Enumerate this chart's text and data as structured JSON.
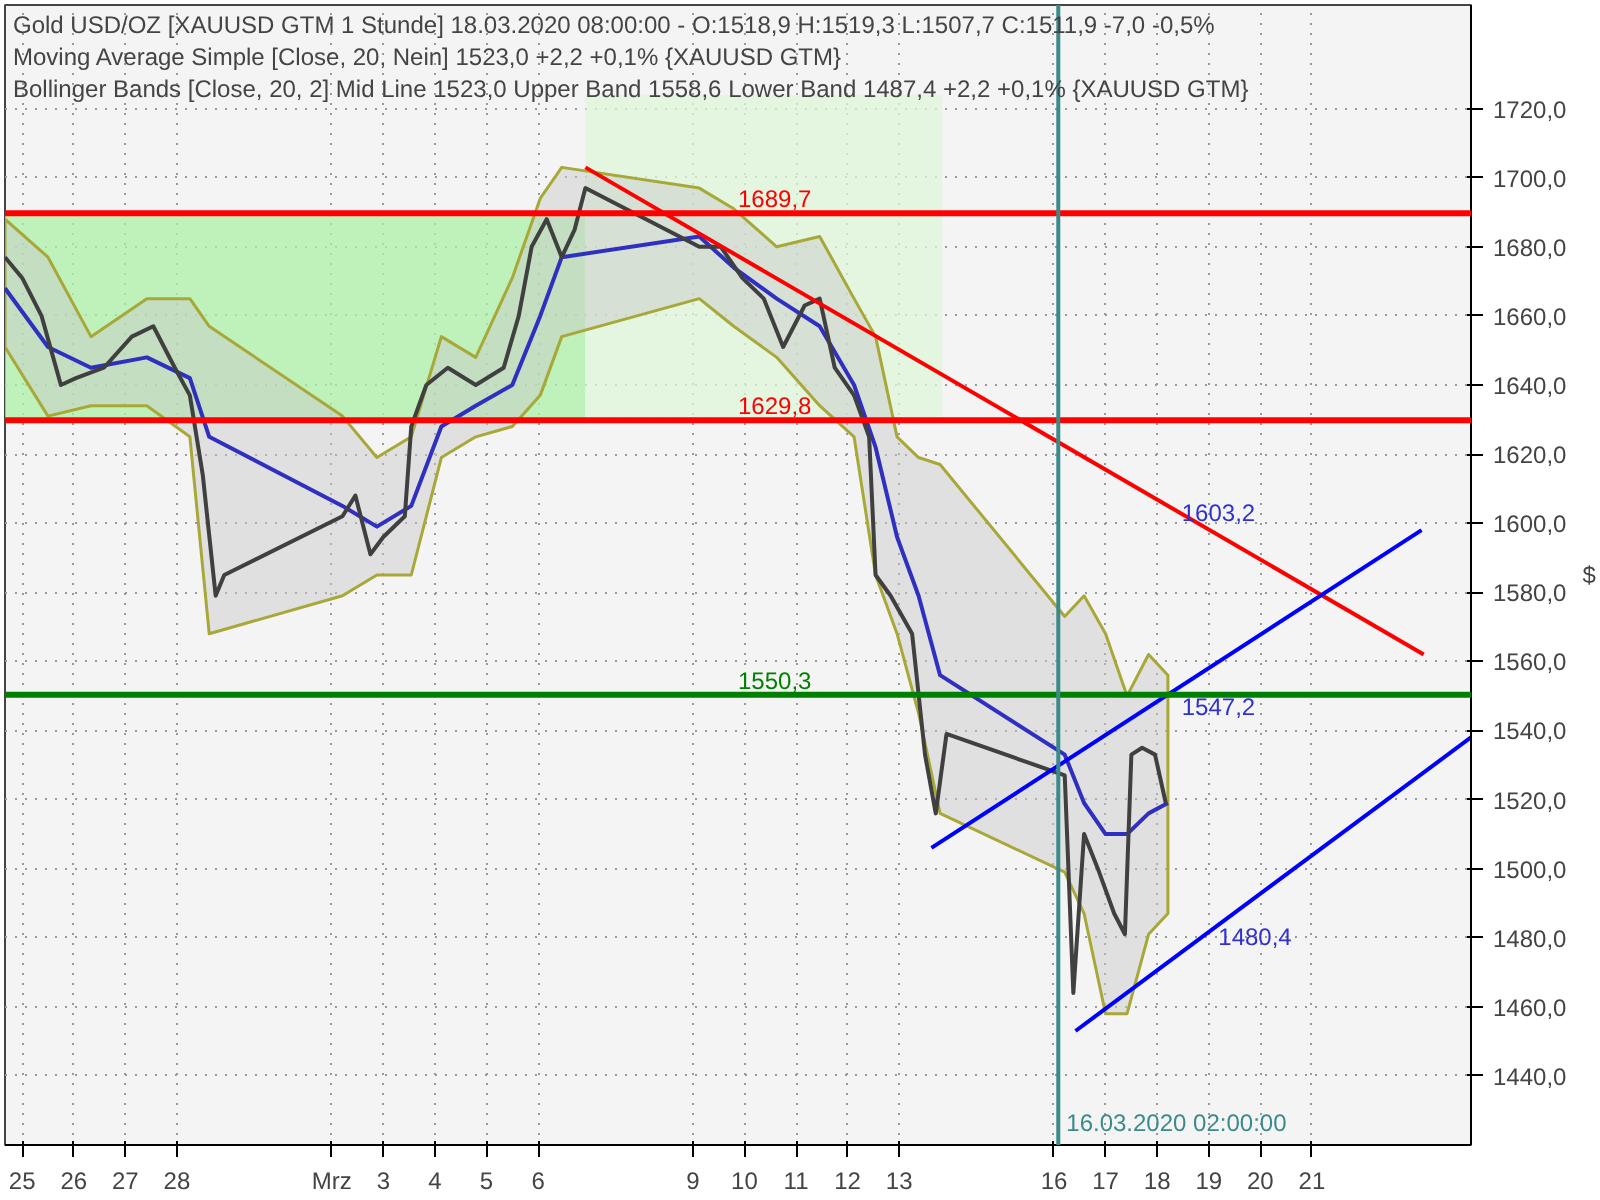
{
  "chart_data": {
    "type": "line",
    "title": "Gold USD/OZ [XAUUSD GTM  1 Stunde] 18.03.2020 08:00:00 - O:1518,9 H:1519,3 L:1507,7 C:1511,9 -7,0 -0,5%",
    "ylabel": "$",
    "xlim": [
      "2020-02-24T16:00",
      "2020-03-24T02:00"
    ],
    "xticks": [
      {
        "value": "2020-02-25",
        "label": "25"
      },
      {
        "value": "2020-02-26",
        "label": "26"
      },
      {
        "value": "2020-02-27",
        "label": "27"
      },
      {
        "value": "2020-02-28",
        "label": "28"
      },
      {
        "value": "2020-03-02",
        "label": "Mrz"
      },
      {
        "value": "2020-03-03",
        "label": "3"
      },
      {
        "value": "2020-03-04",
        "label": "4"
      },
      {
        "value": "2020-03-05",
        "label": "5"
      },
      {
        "value": "2020-03-06",
        "label": "6"
      },
      {
        "value": "2020-03-09",
        "label": "9"
      },
      {
        "value": "2020-03-10",
        "label": "10"
      },
      {
        "value": "2020-03-11",
        "label": "11"
      },
      {
        "value": "2020-03-12",
        "label": "12"
      },
      {
        "value": "2020-03-13",
        "label": "13"
      },
      {
        "value": "2020-03-16",
        "label": "16"
      },
      {
        "value": "2020-03-17",
        "label": "17"
      },
      {
        "value": "2020-03-18",
        "label": "18"
      },
      {
        "value": "2020-03-19",
        "label": "19"
      },
      {
        "value": "2020-03-20",
        "label": "20"
      },
      {
        "value": "2020-03-21",
        "label": "21"
      }
    ],
    "ylim": [
      1420,
      1750
    ],
    "yticks": [
      {
        "value": 1440,
        "label": "1440,0"
      },
      {
        "value": 1460,
        "label": "1460,0"
      },
      {
        "value": 1480,
        "label": "1480,0"
      },
      {
        "value": 1500,
        "label": "1500,0"
      },
      {
        "value": 1520,
        "label": "1520,0"
      },
      {
        "value": 1540,
        "label": "1540,0"
      },
      {
        "value": 1560,
        "label": "1560,0"
      },
      {
        "value": 1580,
        "label": "1580,0"
      },
      {
        "value": 1600,
        "label": "1600,0"
      },
      {
        "value": 1620,
        "label": "1620,0"
      },
      {
        "value": 1640,
        "label": "1640,0"
      },
      {
        "value": 1660,
        "label": "1660,0"
      },
      {
        "value": 1680,
        "label": "1680,0"
      },
      {
        "value": 1700,
        "label": "1700,0"
      },
      {
        "value": 1720,
        "label": "1720,0"
      }
    ],
    "grid": true,
    "series": [
      {
        "color": "#aef0a8",
        "x": [
          "2020-02-24T16:00",
          "2020-03-06T22:00"
        ],
        "values": [
          null,
          null
        ],
        "upper": [
          1689.7,
          1689.7
        ],
        "lower": [
          1629.8,
          1629.8
        ]
      },
      {
        "color": "#dff5da",
        "x": [
          "2020-03-06T22:00",
          "2020-03-13T20:00"
        ],
        "values": [
          null,
          null
        ],
        "upper": [
          1724,
          1724
        ],
        "lower": [
          1629.8,
          1629.8
        ]
      },
      {
        "color": "#3030c0",
        "x": [
          "2020-02-24T16:00",
          "2020-02-25T12:00",
          "2020-02-26T08:00",
          "2020-02-27T10:00",
          "2020-02-28T06:00",
          "2020-02-28T15:00",
          "2020-03-02T05:00",
          "2020-03-02T21:00",
          "2020-03-03T13:00",
          "2020-03-04T03:00",
          "2020-03-04T19:00",
          "2020-03-05T12:00",
          "2020-03-06T01:00",
          "2020-03-06T11:00",
          "2020-03-09T03:00",
          "2020-03-09T19:00",
          "2020-03-10T15:00",
          "2020-03-11T11:00",
          "2020-03-12T03:00",
          "2020-03-12T13:00",
          "2020-03-12T23:00",
          "2020-03-13T09:00",
          "2020-03-13T19:00",
          "2020-03-16T05:00",
          "2020-03-16T14:00",
          "2020-03-17T00:00",
          "2020-03-17T10:00",
          "2020-03-17T20:00",
          "2020-03-18T05:00"
        ],
        "values": [
          1668,
          1651,
          1645,
          1648,
          1642,
          1625,
          1605,
          1599,
          1605,
          1628,
          1634,
          1640,
          1660,
          1677,
          1683,
          1674,
          1665,
          1657,
          1640,
          1622,
          1596,
          1579,
          1556,
          1533,
          1519,
          1510,
          1510,
          1516,
          1519
        ],
        "upper": [
          1688,
          1677,
          1654,
          1665,
          1665,
          1657,
          1631,
          1619,
          1625,
          1654,
          1648,
          1671,
          1694,
          1703,
          1697,
          1691,
          1680,
          1683,
          1665,
          1654,
          1625,
          1619,
          1617,
          1573,
          1579,
          1568,
          1550,
          1562,
          1556
        ],
        "lower": [
          1651,
          1631,
          1634,
          1634,
          1625,
          1568,
          1579,
          1585,
          1585,
          1619,
          1625,
          1628,
          1637,
          1654,
          1665,
          1657,
          1648,
          1634,
          1625,
          1585,
          1568,
          1545,
          1516,
          1499,
          1487,
          1458,
          1458,
          1481,
          1487
        ]
      },
      {
        "color": "#404040",
        "x": [
          "2020-02-24T16:00",
          "2020-02-25T00:00",
          "2020-02-25T09:00",
          "2020-02-25T18:00",
          "2020-02-26T01:00",
          "2020-02-26T14:00",
          "2020-02-27T03:00",
          "2020-02-27T13:00",
          "2020-02-27T23:00",
          "2020-02-28T06:00",
          "2020-02-28T12:00",
          "2020-02-28T18:00",
          "2020-02-28T22:00",
          "2020-03-02T05:00",
          "2020-03-02T11:00",
          "2020-03-02T18:00",
          "2020-03-03T00:00",
          "2020-03-03T10:00",
          "2020-03-03T13:00",
          "2020-03-03T20:00",
          "2020-03-04T06:00",
          "2020-03-04T19:00",
          "2020-03-05T08:00",
          "2020-03-05T15:00",
          "2020-03-05T21:00",
          "2020-03-06T04:00",
          "2020-03-06T11:00",
          "2020-03-06T17:00",
          "2020-03-06T22:00",
          "2020-03-09T03:00",
          "2020-03-09T13:00",
          "2020-03-09T23:00",
          "2020-03-10T09:00",
          "2020-03-10T18:00",
          "2020-03-11T04:00",
          "2020-03-11T11:00",
          "2020-03-11T18:00",
          "2020-03-12T03:00",
          "2020-03-12T10:00",
          "2020-03-12T13:00",
          "2020-03-12T20:00",
          "2020-03-13T06:00",
          "2020-03-13T12:00",
          "2020-03-13T17:00",
          "2020-03-13T22:00",
          "2020-03-16T05:00",
          "2020-03-16T09:00",
          "2020-03-16T14:00",
          "2020-03-16T21:00",
          "2020-03-17T04:00",
          "2020-03-17T09:00",
          "2020-03-17T12:00",
          "2020-03-17T17:00",
          "2020-03-17T23:00",
          "2020-03-18T04:00"
        ],
        "values": [
          1677,
          1671,
          1660,
          1640,
          1642,
          1645,
          1654,
          1657,
          1645,
          1637,
          1614,
          1579,
          1585,
          1602,
          1608,
          1591,
          1596,
          1602,
          1628,
          1640,
          1645,
          1640,
          1645,
          1660,
          1680,
          1688,
          1677,
          1685,
          1697,
          1680,
          1680,
          1671,
          1665,
          1651,
          1663,
          1665,
          1645,
          1637,
          1625,
          1585,
          1579,
          1568,
          1533,
          1516,
          1539,
          1527,
          1464,
          1510,
          1499,
          1487,
          1481,
          1533,
          1535,
          1533,
          1519
        ]
      },
      {
        "color": "#ff0000",
        "x": [
          "2020-03-06T22:00",
          "2020-03-23T04:00"
        ],
        "values": [
          1703,
          1562
        ]
      },
      {
        "color": "#0000ff",
        "x": [
          "2020-03-13T15:00",
          "2020-03-23T03:00"
        ],
        "values": [
          1506,
          1598
        ]
      },
      {
        "color": "#0000ff",
        "x": [
          "2020-03-16T10:00",
          "2020-03-24T02:00"
        ],
        "values": [
          1453,
          1538
        ]
      }
    ],
    "ref_lines": [
      {
        "axis": "y",
        "value": 1689.7,
        "label": "1689,7",
        "color": "#ff0000"
      },
      {
        "axis": "y",
        "value": 1629.8,
        "label": "1629,8",
        "color": "#ff0000"
      },
      {
        "axis": "y",
        "value": 1550.3,
        "label": "1550,3",
        "color": "#008000"
      },
      {
        "axis": "x",
        "value": "2020-03-16T02:00",
        "label": "16.03.2020 02:00:00",
        "color": "#3a8a8a"
      }
    ],
    "annotations": [
      "Moving Average Simple [Close, 20, Nein] 1523,0 +2,2 +0,1% {XAUUSD GTM}",
      "Bollinger Bands [Close, 20, 2] Mid Line 1523,0 Upper Band 1558,6 Lower Band 1487,4 +2,2 +0,1% {XAUUSD GTM}",
      {
        "text": "1603,2",
        "x": "2020-03-18T04:00",
        "y": 1603.2
      },
      {
        "text": "1547,2",
        "x": "2020-03-18T04:00",
        "y": 1547.2
      },
      {
        "text": "1480,4",
        "x": "2020-03-18T21:00",
        "y": 1480.4
      }
    ]
  }
}
